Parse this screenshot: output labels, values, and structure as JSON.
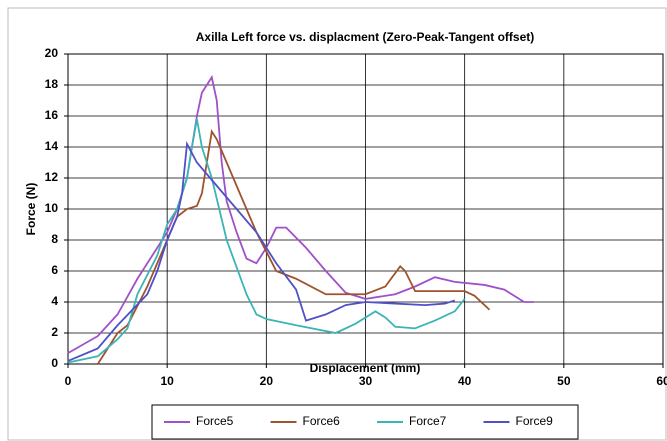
{
  "chart_data": {
    "type": "line",
    "title": "Axilla Left force vs. displacment (Zero-Peak-Tangent offset)",
    "xlabel": "Displacement (mm)",
    "ylabel": "Force (N)",
    "xlim": [
      0,
      60
    ],
    "ylim": [
      0,
      20
    ],
    "xticks": [
      0,
      10,
      20,
      30,
      40,
      50,
      60
    ],
    "yticks": [
      0,
      2,
      4,
      6,
      8,
      10,
      12,
      14,
      16,
      18,
      20
    ],
    "grid": true,
    "legend": "bottom",
    "series": [
      {
        "name": "Force5",
        "color": "#a050c8",
        "x": [
          0,
          3,
          5,
          7,
          9,
          10,
          11,
          12,
          13,
          13.5,
          14.5,
          15,
          15.5,
          16,
          17,
          18,
          19,
          20,
          21,
          22,
          24,
          26,
          28,
          30,
          33,
          35,
          37,
          39,
          42,
          44,
          46,
          47
        ],
        "values": [
          0.7,
          1.8,
          3.2,
          5.5,
          7.5,
          8.5,
          10,
          12,
          16,
          17.5,
          18.5,
          17,
          13,
          10.5,
          8.5,
          6.8,
          6.5,
          7.5,
          8.8,
          8.8,
          7.5,
          6,
          4.6,
          4.2,
          4.5,
          5,
          5.6,
          5.3,
          5.1,
          4.8,
          4,
          4
        ]
      },
      {
        "name": "Force6",
        "color": "#a0522d",
        "x": [
          3,
          3.5,
          5,
          6,
          8,
          10,
          11,
          12,
          13,
          13.5,
          14,
          14.5,
          15,
          16,
          17,
          19,
          21,
          23,
          26,
          30,
          32,
          33.5,
          34,
          35,
          38,
          40,
          41,
          42.5
        ],
        "values": [
          0,
          0.5,
          2,
          2.5,
          5,
          8,
          9.5,
          10,
          10.2,
          11,
          13,
          15,
          14.5,
          13,
          11.5,
          8.5,
          6,
          5.5,
          4.5,
          4.5,
          5,
          6.3,
          6,
          4.7,
          4.7,
          4.7,
          4.4,
          3.5
        ]
      },
      {
        "name": "Force7",
        "color": "#3cb4b4",
        "x": [
          0,
          3,
          5,
          6,
          7,
          9,
          10,
          11,
          12,
          12.5,
          13,
          13.5,
          14.5,
          16,
          18,
          19,
          20,
          23,
          27,
          29,
          31,
          32,
          33,
          35,
          37,
          39,
          40
        ],
        "values": [
          0.1,
          0.5,
          1.6,
          2.3,
          4.5,
          7,
          9,
          10,
          12,
          14,
          15.8,
          14,
          12,
          8,
          4.5,
          3.2,
          2.9,
          2.5,
          2,
          2.6,
          3.4,
          3,
          2.4,
          2.3,
          2.8,
          3.4,
          4.2
        ]
      },
      {
        "name": "Force9",
        "color": "#5050c8",
        "x": [
          0,
          3,
          5,
          8,
          9,
          10,
          11,
          11.5,
          12,
          13,
          15,
          17,
          19,
          21,
          23,
          24,
          26,
          28,
          30,
          33,
          36,
          38,
          39
        ],
        "values": [
          0.2,
          1,
          2.5,
          4.5,
          6,
          8,
          9.5,
          11,
          14.2,
          13,
          11.5,
          10,
          8.5,
          6.5,
          4.8,
          2.8,
          3.2,
          3.8,
          4,
          3.9,
          3.8,
          3.9,
          4.1
        ]
      }
    ]
  }
}
